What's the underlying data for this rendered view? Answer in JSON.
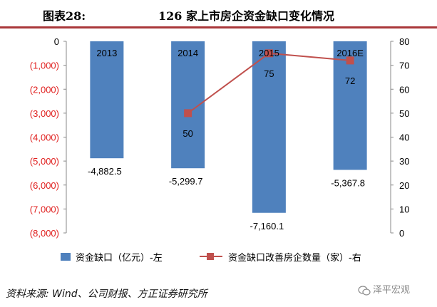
{
  "header": {
    "figure_number": "图表28:",
    "title": "126 家上市房企资金缺口变化情况"
  },
  "source_note": "资料来源: Wind、公司财报、方正证券研究所",
  "watermark": "泽平宏观",
  "colors": {
    "bar": "#4f81bd",
    "line": "#c0504d",
    "left_axis_negative": "#e0201f",
    "header_rule": "#a9373a"
  },
  "chart_data": {
    "type": "bar+line",
    "categories": [
      "2013",
      "2014",
      "2015",
      "2016E"
    ],
    "series": [
      {
        "name": "资金缺口（亿元）-左",
        "type": "bar",
        "axis": "left",
        "values": [
          -4882.5,
          -5299.7,
          -7160.1,
          -5367.8
        ],
        "labels": [
          "-4,882.5",
          "-5,299.7",
          "-7,160.1",
          "-5,367.8"
        ]
      },
      {
        "name": "资金缺口改善房企数量（家）-右",
        "type": "line",
        "axis": "right",
        "values": [
          null,
          50,
          75,
          72
        ],
        "labels": [
          "",
          "50",
          "75",
          "72"
        ]
      }
    ],
    "left_axis": {
      "ylim": [
        -8000,
        0
      ],
      "ticks": [
        0,
        -1000,
        -2000,
        -3000,
        -4000,
        -5000,
        -6000,
        -7000,
        -8000
      ],
      "tick_labels": [
        "0",
        "(1,000)",
        "(2,000)",
        "(3,000)",
        "(4,000)",
        "(5,000)",
        "(6,000)",
        "(7,000)",
        "(8,000)"
      ]
    },
    "right_axis": {
      "ylim": [
        0,
        80
      ],
      "ticks": [
        80,
        70,
        60,
        50,
        40,
        30,
        20,
        10,
        0
      ],
      "tick_labels": [
        "80",
        "70",
        "60",
        "50",
        "40",
        "30",
        "20",
        "10",
        "0"
      ]
    },
    "grid": false,
    "legend_position": "bottom"
  }
}
